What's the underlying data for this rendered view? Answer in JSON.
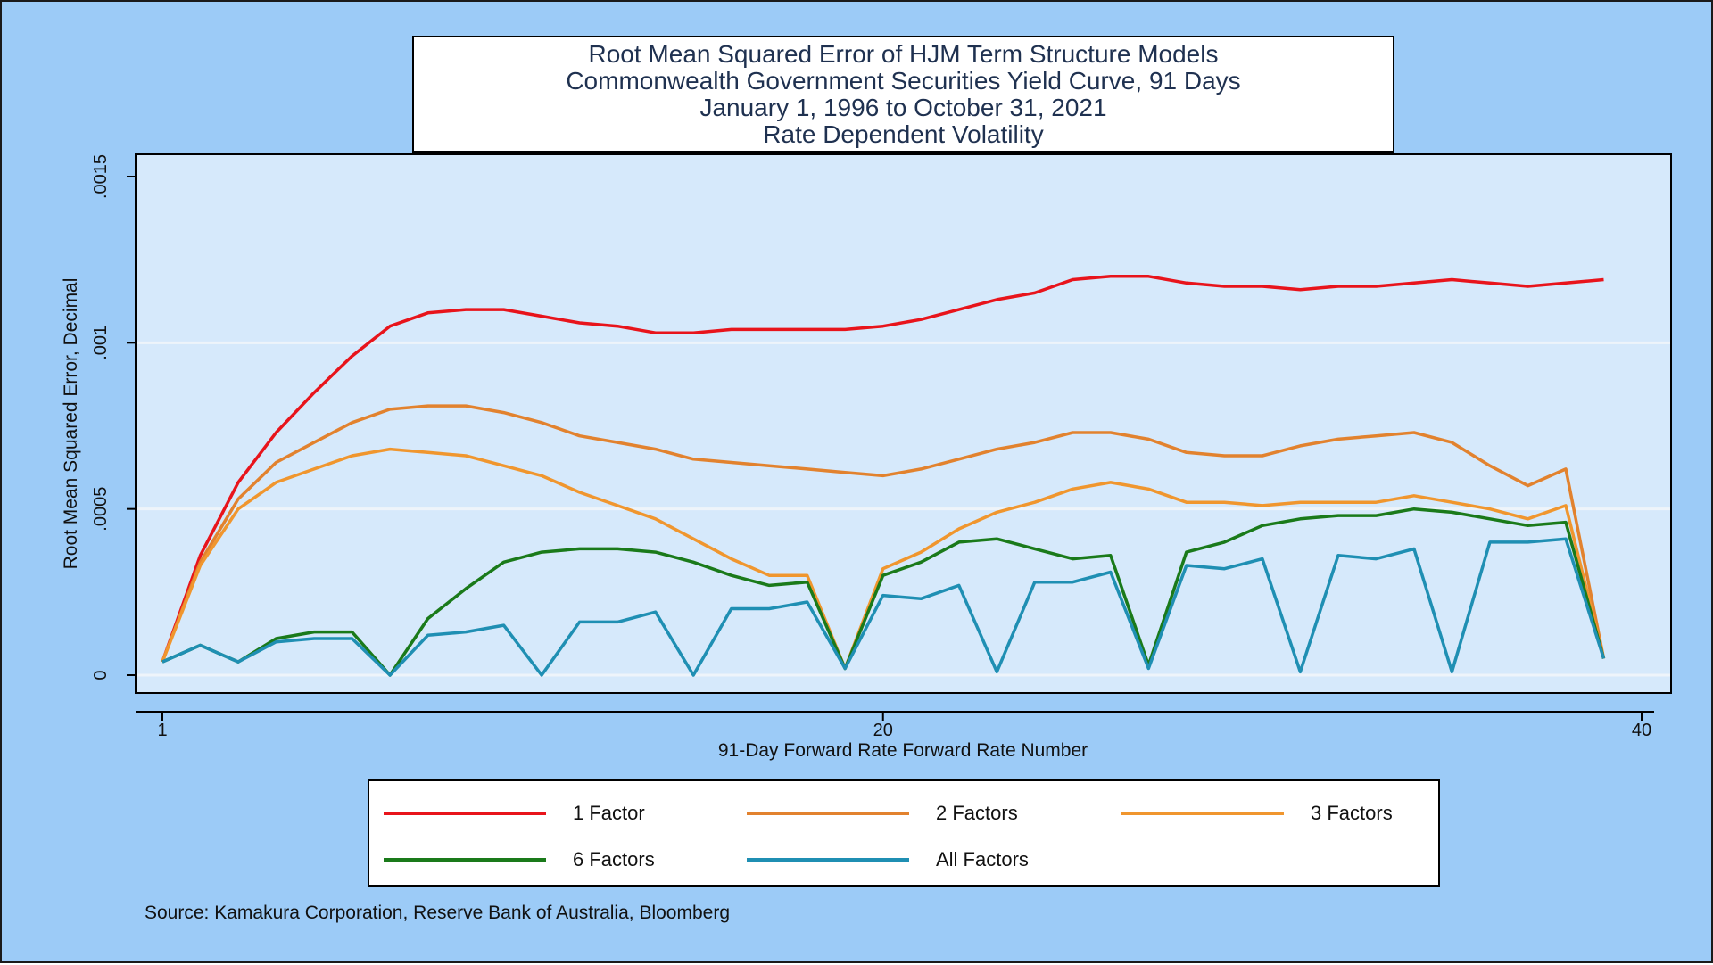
{
  "title_lines": [
    "Root Mean Squared Error of HJM Term Structure Models",
    "Commonwealth Government Securities Yield Curve, 91 Days",
    "January 1, 1996 to October 31, 2021",
    "Rate Dependent Volatility"
  ],
  "source": "Source: Kamakura Corporation, Reserve Bank of Australia, Bloomberg",
  "colors": {
    "background": "#9ccbf7",
    "plot_area": "#d6e9fb",
    "grid": "#eef4fa"
  },
  "chart_data": {
    "type": "line",
    "xlabel": "91-Day Forward Rate Forward Rate Number",
    "ylabel": "Root Mean Squared Error, Decimal",
    "xlim": [
      1,
      40
    ],
    "ylim": [
      0,
      0.0015
    ],
    "x_ticks": [
      {
        "value": 1,
        "label": "1"
      },
      {
        "value": 20,
        "label": "20"
      },
      {
        "value": 40,
        "label": "40"
      }
    ],
    "y_ticks": [
      {
        "value": 0,
        "label": "0"
      },
      {
        "value": 0.0005,
        "label": ".0005"
      },
      {
        "value": 0.001,
        "label": ".001"
      },
      {
        "value": 0.0015,
        "label": ".0015"
      }
    ],
    "grid": true,
    "legend_position": "bottom",
    "x": [
      1,
      2,
      3,
      4,
      5,
      6,
      7,
      8,
      9,
      10,
      11,
      12,
      13,
      14,
      15,
      16,
      17,
      18,
      19,
      20,
      21,
      22,
      23,
      24,
      25,
      26,
      27,
      28,
      29,
      30,
      31,
      32,
      33,
      34,
      35,
      36,
      37,
      38,
      39
    ],
    "series": [
      {
        "name": "1 Factor",
        "color": "#e8141b",
        "values": [
          4e-05,
          0.00036,
          0.00058,
          0.00073,
          0.00085,
          0.00096,
          0.00105,
          0.00109,
          0.0011,
          0.0011,
          0.00108,
          0.00106,
          0.00105,
          0.00103,
          0.00103,
          0.00104,
          0.00104,
          0.00104,
          0.00104,
          0.00105,
          0.00107,
          0.0011,
          0.00113,
          0.00115,
          0.00119,
          0.0012,
          0.0012,
          0.00118,
          0.00117,
          0.00117,
          0.00116,
          0.00117,
          0.00117,
          0.00118,
          0.00119,
          0.00118,
          0.00117,
          0.00118,
          0.00119
        ]
      },
      {
        "name": "2 Factors",
        "color": "#e2822e",
        "values": [
          4e-05,
          0.00034,
          0.00053,
          0.00064,
          0.0007,
          0.00076,
          0.0008,
          0.00081,
          0.00081,
          0.00079,
          0.00076,
          0.00072,
          0.0007,
          0.00068,
          0.00065,
          0.00064,
          0.00063,
          0.00062,
          0.00061,
          0.0006,
          0.00062,
          0.00065,
          0.00068,
          0.0007,
          0.00073,
          0.00073,
          0.00071,
          0.00067,
          0.00066,
          0.00066,
          0.00069,
          0.00071,
          0.00072,
          0.00073,
          0.0007,
          0.00063,
          0.00057,
          0.00062,
          5e-05
        ]
      },
      {
        "name": "3 Factors",
        "color": "#f0962e",
        "values": [
          4e-05,
          0.00033,
          0.0005,
          0.00058,
          0.00062,
          0.00066,
          0.00068,
          0.00067,
          0.00066,
          0.00063,
          0.0006,
          0.00055,
          0.00051,
          0.00047,
          0.00041,
          0.00035,
          0.0003,
          0.0003,
          2e-05,
          0.00032,
          0.00037,
          0.00044,
          0.00049,
          0.00052,
          0.00056,
          0.00058,
          0.00056,
          0.00052,
          0.00052,
          0.00051,
          0.00052,
          0.00052,
          0.00052,
          0.00054,
          0.00052,
          0.0005,
          0.00047,
          0.00051,
          5e-05
        ]
      },
      {
        "name": "6 Factors",
        "color": "#1a7a1a",
        "values": [
          4e-05,
          9e-05,
          4e-05,
          0.00011,
          0.00013,
          0.00013,
          0.0,
          0.00017,
          0.00026,
          0.00034,
          0.00037,
          0.00038,
          0.00038,
          0.00037,
          0.00034,
          0.0003,
          0.00027,
          0.00028,
          2e-05,
          0.0003,
          0.00034,
          0.0004,
          0.00041,
          0.00038,
          0.00035,
          0.00036,
          3e-05,
          0.00037,
          0.0004,
          0.00045,
          0.00047,
          0.00048,
          0.00048,
          0.0005,
          0.00049,
          0.00047,
          0.00045,
          0.00046,
          5e-05
        ]
      },
      {
        "name": "All Factors",
        "color": "#1f8fb3",
        "values": [
          4e-05,
          9e-05,
          4e-05,
          0.0001,
          0.00011,
          0.00011,
          0.0,
          0.00012,
          0.00013,
          0.00015,
          0.0,
          0.00016,
          0.00016,
          0.00019,
          0.0,
          0.0002,
          0.0002,
          0.00022,
          2e-05,
          0.00024,
          0.00023,
          0.00027,
          1e-05,
          0.00028,
          0.00028,
          0.00031,
          2e-05,
          0.00033,
          0.00032,
          0.00035,
          1e-05,
          0.00036,
          0.00035,
          0.00038,
          1e-05,
          0.0004,
          0.0004,
          0.00041,
          5e-05
        ]
      }
    ]
  }
}
